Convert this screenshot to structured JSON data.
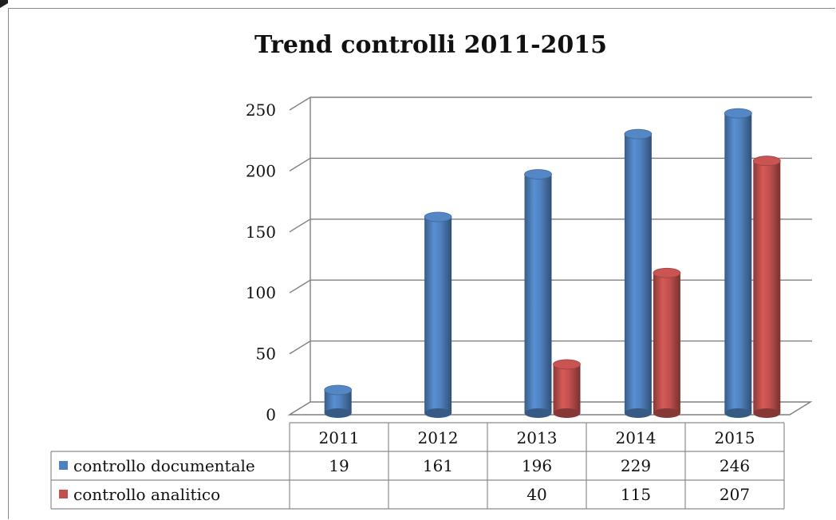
{
  "chart_data": {
    "type": "bar",
    "title": "Trend controlli 2011-2015",
    "xlabel": "",
    "ylabel": "",
    "categories": [
      "2011",
      "2012",
      "2013",
      "2014",
      "2015"
    ],
    "series": [
      {
        "name": "controllo documentale",
        "values": [
          19,
          161,
          196,
          229,
          246
        ],
        "labels": [
          "19",
          "161",
          "196",
          "229",
          "246"
        ],
        "color": "#4f81bd"
      },
      {
        "name": "controllo analitico",
        "values": [
          null,
          null,
          40,
          115,
          207
        ],
        "labels": [
          "",
          "",
          "40",
          "115",
          "207"
        ],
        "color": "#c0504d"
      }
    ],
    "ylim": [
      0,
      250
    ],
    "yticks": [
      "0",
      "50",
      "100",
      "150",
      "200",
      "250"
    ],
    "grid": true,
    "legend": "data-table-below"
  }
}
